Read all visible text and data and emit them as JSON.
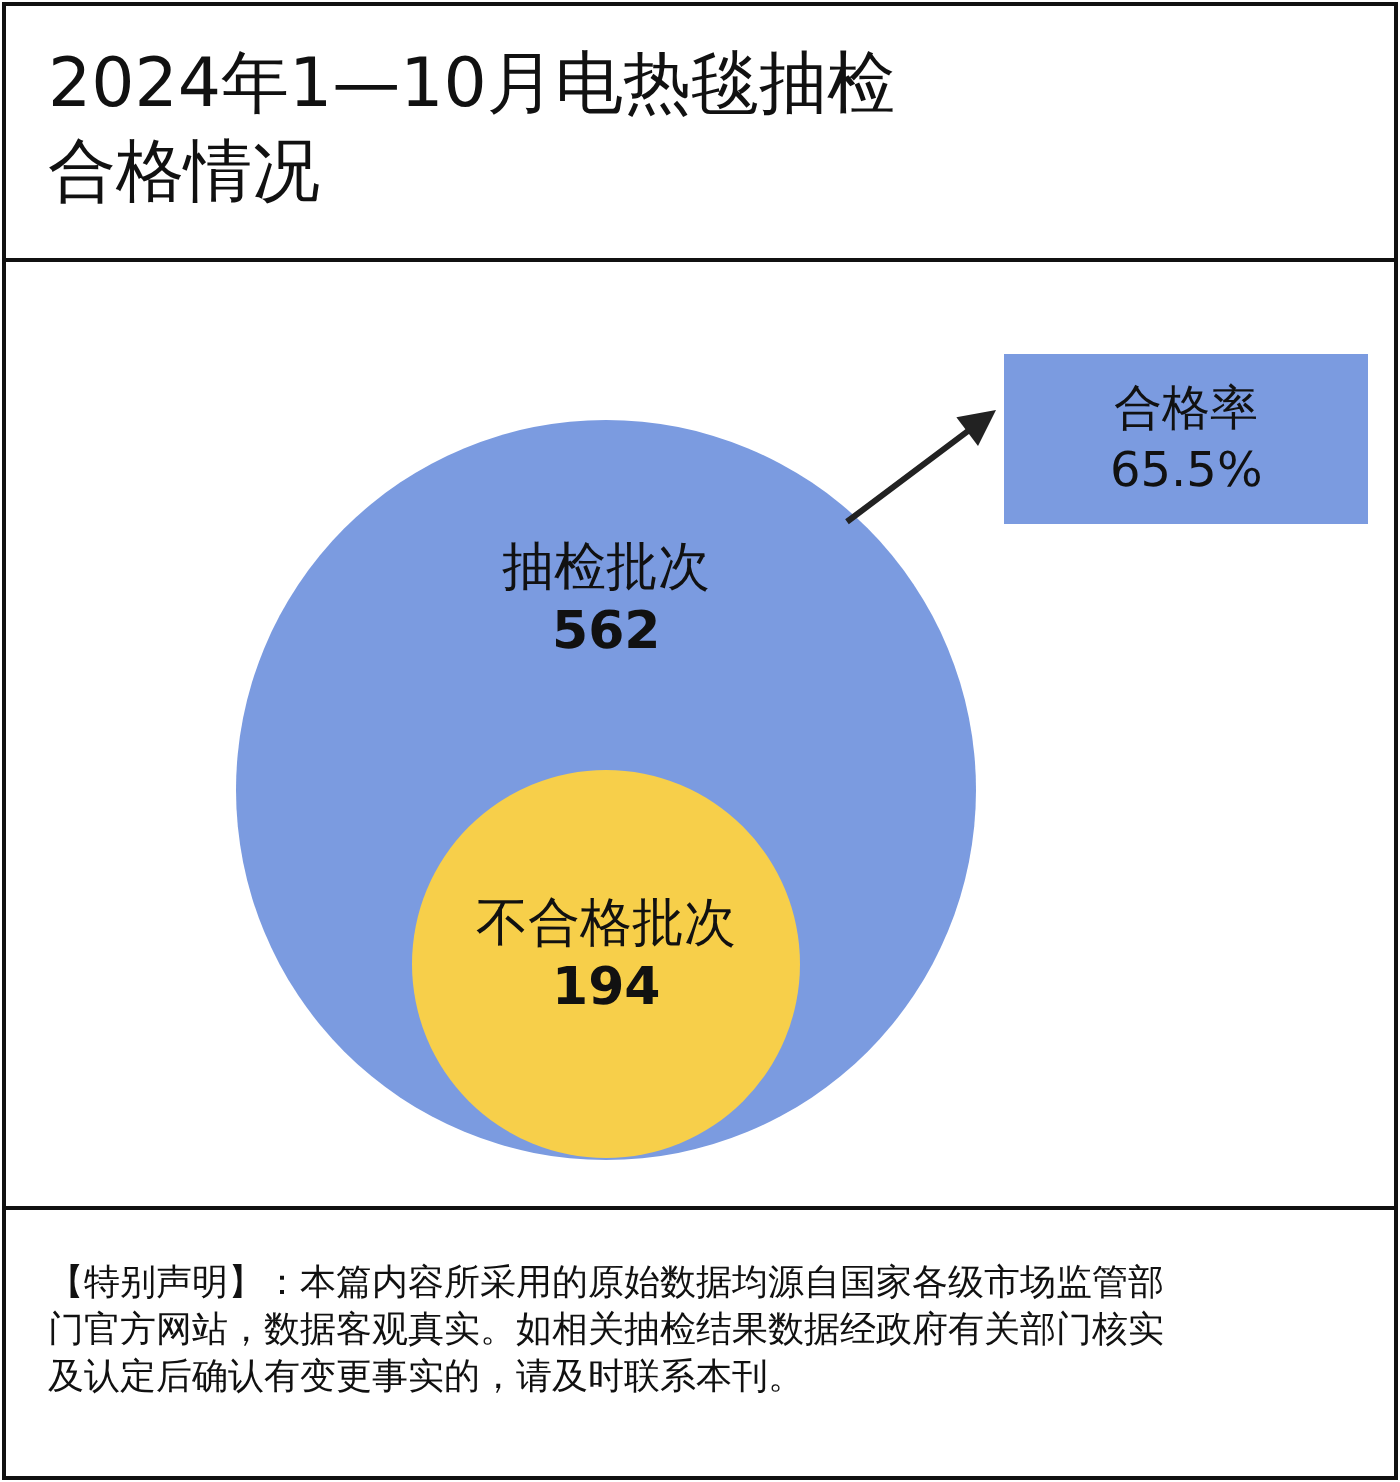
{
  "chart_data": {
    "type": "other",
    "title": "2024年1—10月电热毯抽检合格情况",
    "categories": [
      "抽检批次",
      "不合格批次"
    ],
    "values": [
      562,
      194
    ],
    "data_labels": true,
    "colors": [
      "#7b9be0",
      "#f7cf4a"
    ],
    "annotations": [
      "合格率\n65.5%",
      "【特别声明】：本篇内容所采用的原始数据均源自国家各级市场监管部门官方网站，数据客观真实。如相关抽检结果数据经政府有关部门核实及认定后确认有变更事实的，请及时联系本刊。"
    ]
  }
}
